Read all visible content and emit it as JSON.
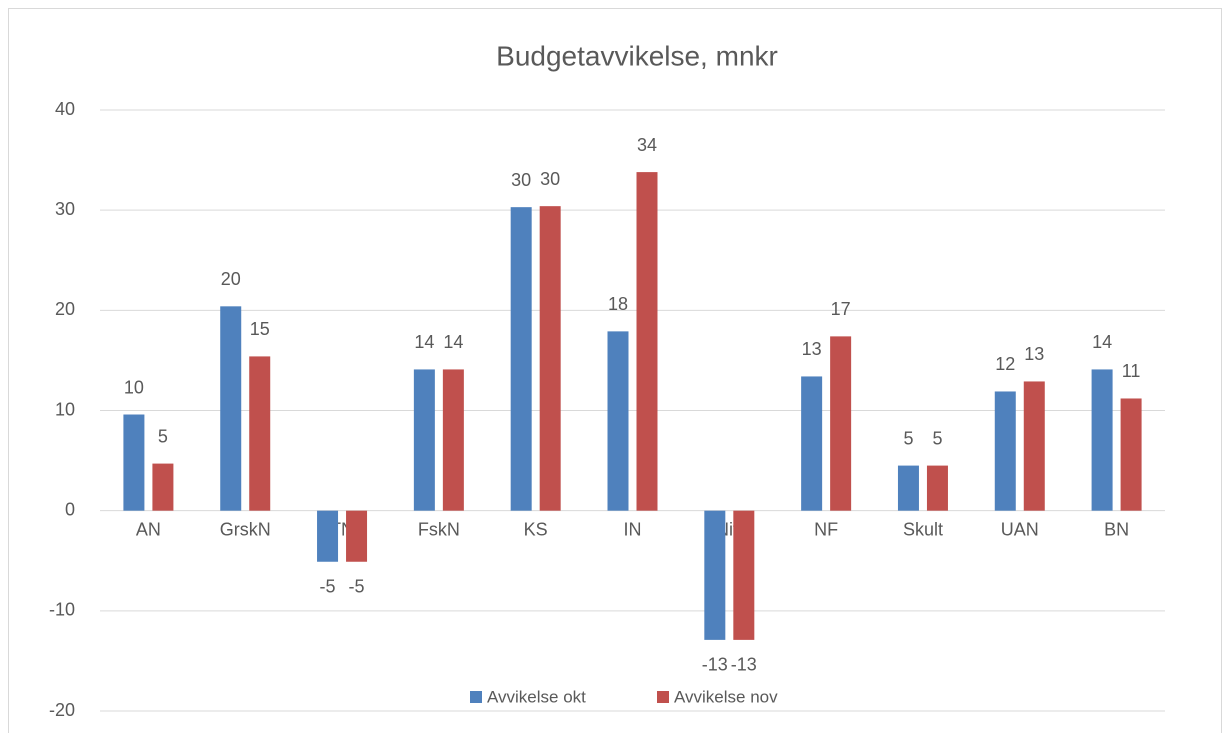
{
  "chart_data": {
    "type": "bar",
    "title": "Budgetavvikelse, mnkr",
    "categories": [
      "AN",
      "GrskN",
      "TN",
      "FskN",
      "KS",
      "IN",
      "Niff",
      "NF",
      "Skult",
      "UAN",
      "BN"
    ],
    "series": [
      {
        "name": "Avvikelse okt",
        "color": "#4f81bd",
        "values": [
          9.6,
          20.4,
          -5.1,
          14.1,
          30.3,
          17.9,
          -12.9,
          13.4,
          4.5,
          11.9,
          14.1
        ],
        "value_labels": [
          "10",
          "20",
          "-5",
          "14",
          "30",
          "18",
          "-13",
          "13",
          "5",
          "12",
          "14"
        ]
      },
      {
        "name": "Avvikelse nov",
        "color": "#c0504d",
        "values": [
          4.7,
          15.4,
          -5.1,
          14.1,
          30.4,
          33.8,
          -12.9,
          17.4,
          4.5,
          12.9,
          11.2
        ],
        "value_labels": [
          "5",
          "15",
          "-5",
          "14",
          "30",
          "34",
          "-13",
          "17",
          "5",
          "13",
          "11"
        ]
      }
    ],
    "ylim": [
      -20,
      40
    ],
    "yticks": [
      -20,
      -10,
      0,
      10,
      20,
      30,
      40
    ],
    "grid": true,
    "legend": "bottom"
  }
}
